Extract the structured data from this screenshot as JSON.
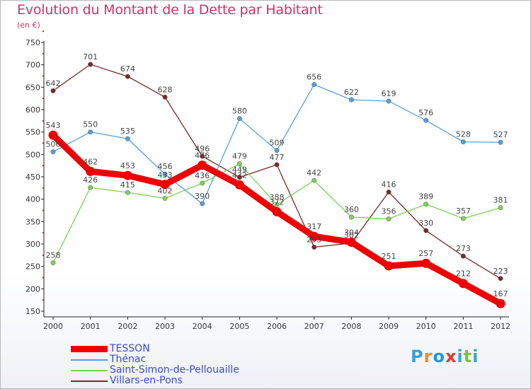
{
  "title": "Evolution du Montant de la Dette par Habitant",
  "unit": "(en €)",
  "logo": {
    "text": "Proxiti",
    "colors": [
      "#3aa0d8",
      "#f08a24",
      "#1a9ad6",
      "#e23a2a",
      "#3aa0d8",
      "#7cc242",
      "#3aa0d8"
    ]
  },
  "chart_data": {
    "type": "line",
    "x": [
      "2000",
      "2001",
      "2002",
      "2003",
      "2004",
      "2005",
      "2006",
      "2007",
      "2008",
      "2009",
      "2010",
      "2011",
      "2012"
    ],
    "ylim": [
      150,
      750
    ],
    "yticks": [
      150,
      200,
      250,
      300,
      350,
      400,
      450,
      500,
      550,
      600,
      650,
      700,
      750
    ],
    "grid": false,
    "legend_placement": "bottom",
    "series": [
      {
        "name": "Villars-en-Pons",
        "color": "#7a2a2e",
        "values": [
          642,
          701,
          674,
          628,
          496,
          449,
          477,
          293,
          302,
          416,
          330,
          273,
          223
        ]
      },
      {
        "name": "Saint-Simon-de-Pellouaille",
        "color": "#7ed15a",
        "values": [
          258,
          426,
          415,
          402,
          436,
          479,
          388,
          442,
          360,
          356,
          389,
          357,
          381
        ]
      },
      {
        "name": "Thénac",
        "color": "#5a9fd6",
        "values": [
          506,
          550,
          535,
          456,
          390,
          580,
          509,
          656,
          622,
          619,
          576,
          528,
          527
        ]
      },
      {
        "name": "TESSON",
        "color": "#ee0000",
        "values": [
          543,
          462,
          453,
          433,
          476,
          432,
          372,
          317,
          304,
          251,
          257,
          212,
          167
        ],
        "bold": true
      }
    ]
  },
  "legend": [
    {
      "label": "TESSON",
      "color": "#ee0000",
      "thickness": "bold"
    },
    {
      "label": "Thénac",
      "color": "#5a9fd6",
      "thickness": "thin"
    },
    {
      "label": "Saint-Simon-de-Pellouaille",
      "color": "#7ed15a",
      "thickness": "thin"
    },
    {
      "label": "Villars-en-Pons",
      "color": "#7a2a2e",
      "thickness": "thin"
    }
  ]
}
